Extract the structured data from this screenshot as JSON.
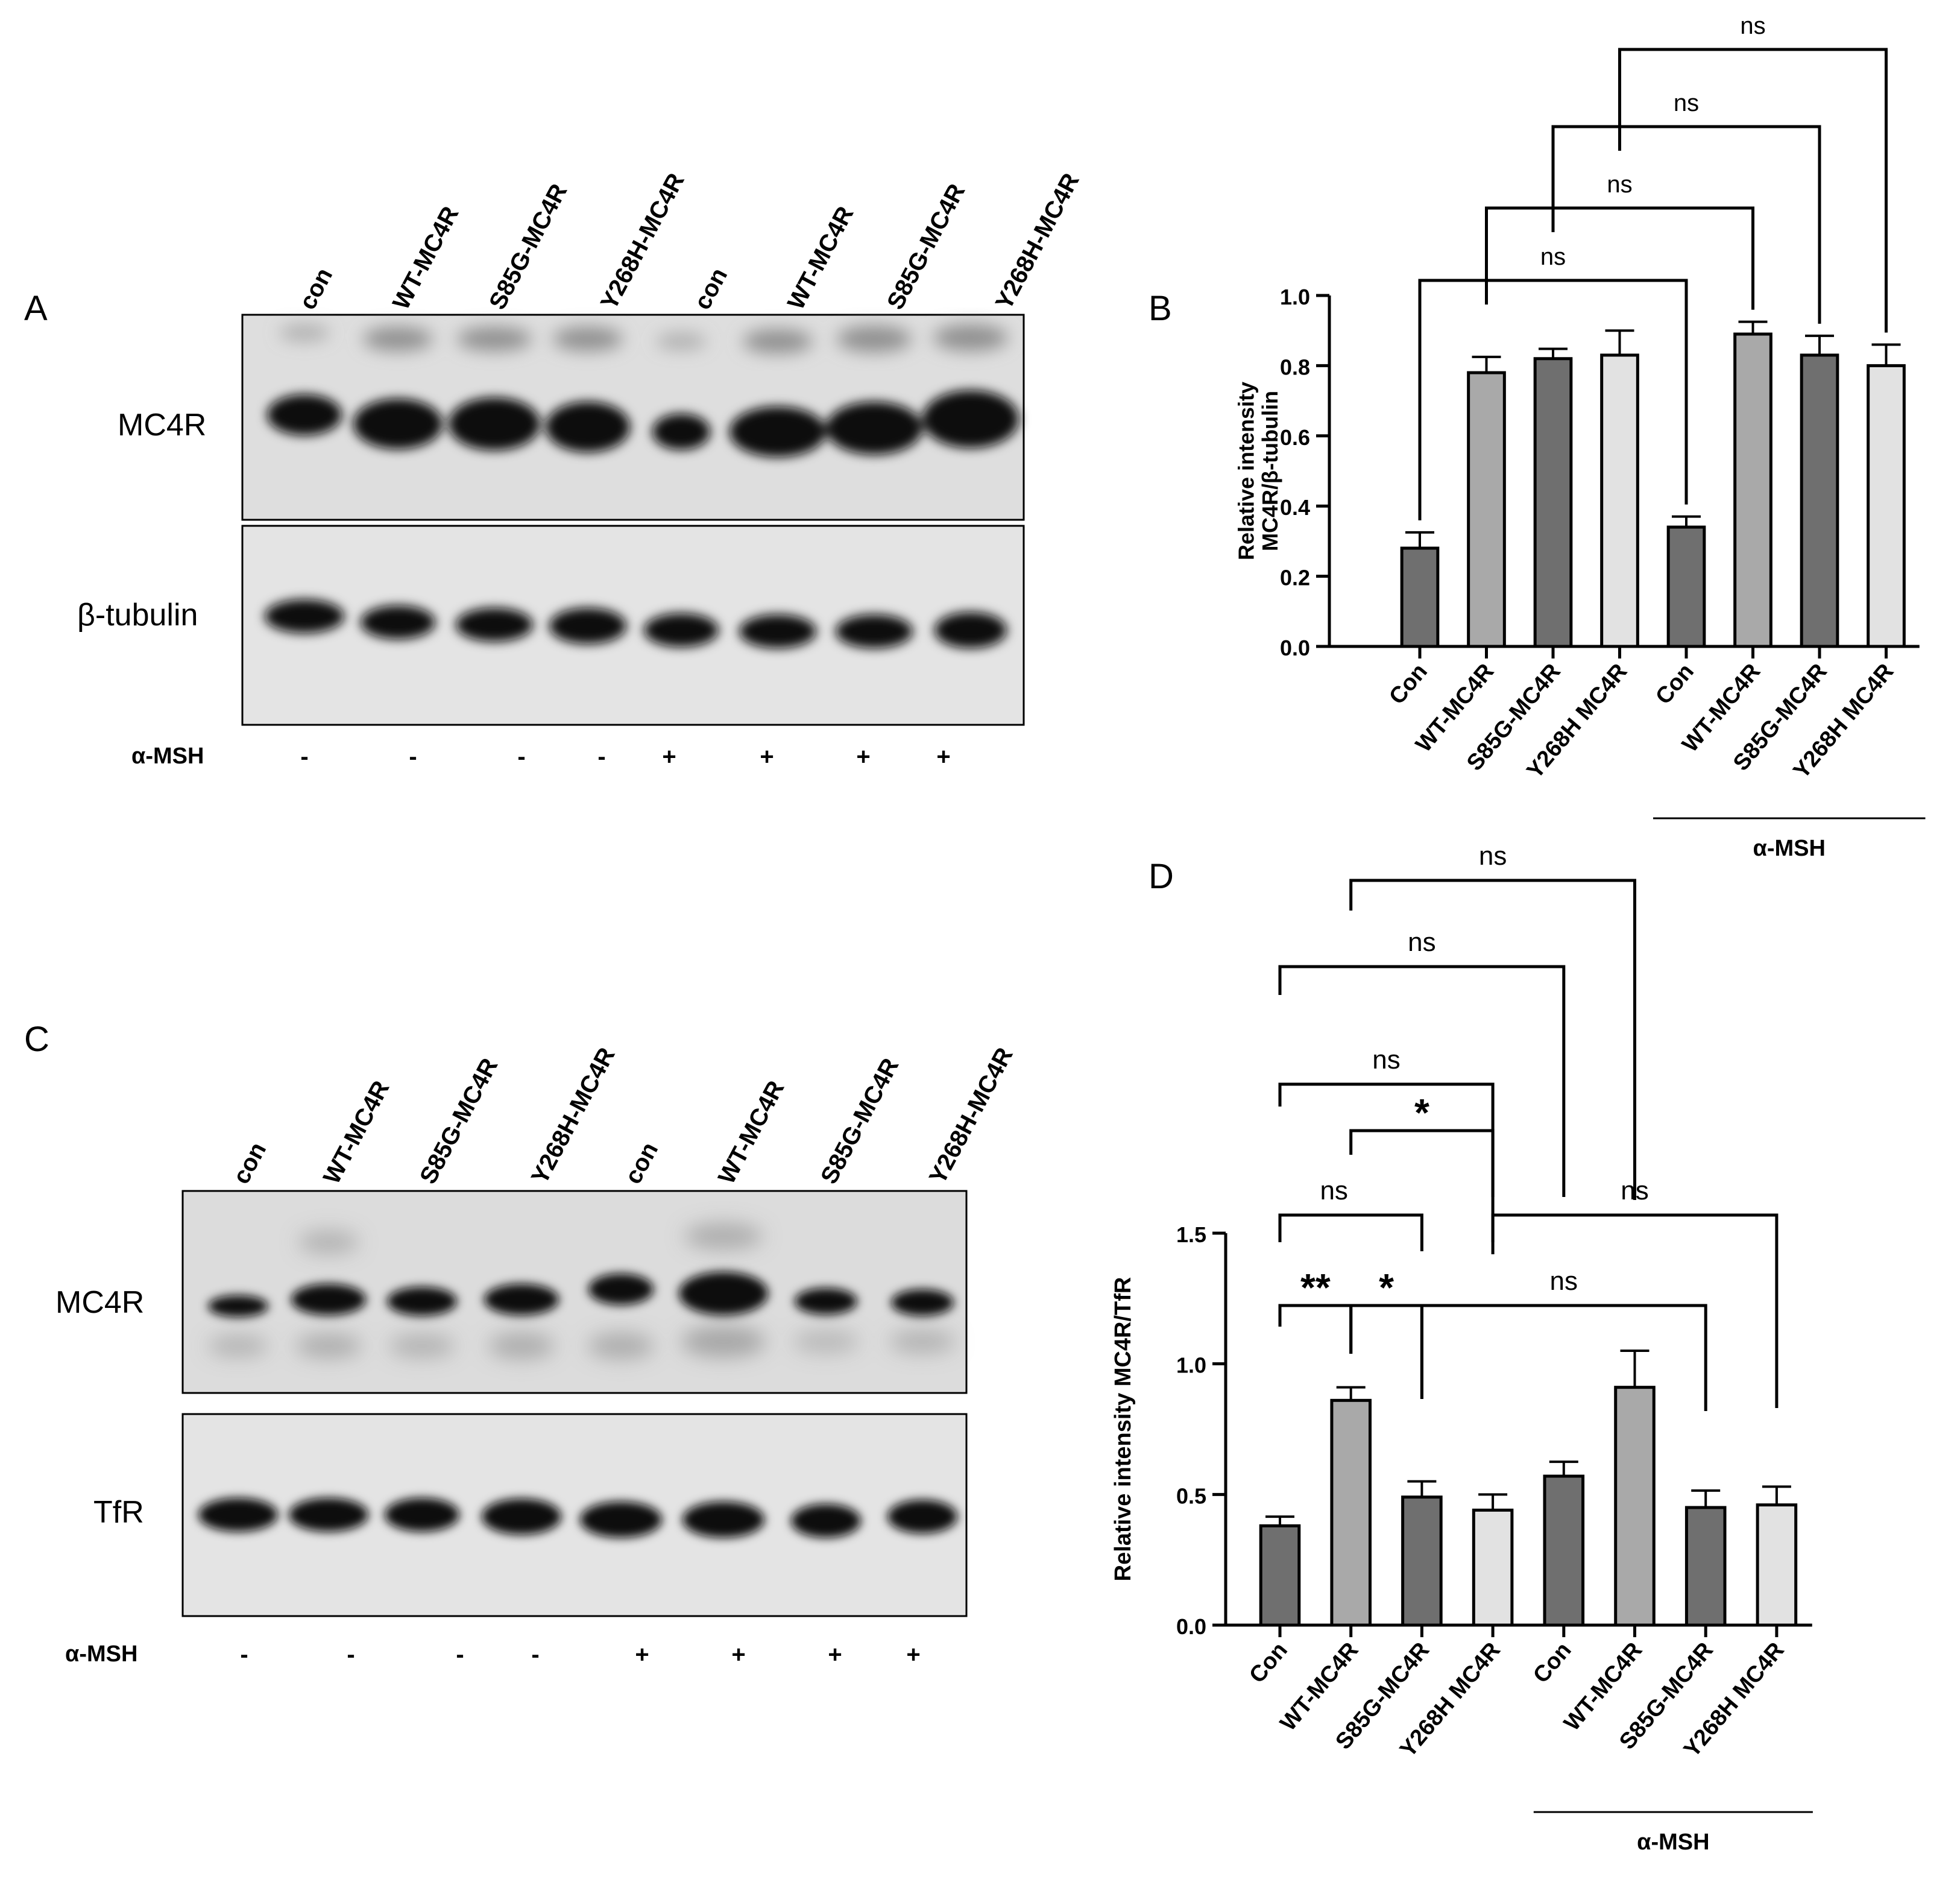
{
  "panels": {
    "a": "A",
    "b": "B",
    "c": "C",
    "d": "D"
  },
  "blot_a": {
    "lanes": [
      "con",
      "WT-MC4R",
      "S85G-MC4R",
      "Y268H-MC4R",
      "con",
      "WT-MC4R",
      "S85G-MC4R",
      "Y268H-MC4R"
    ],
    "rows": [
      "MC4R",
      "β-tubulin"
    ],
    "treatment_label": "α-MSH",
    "treatment": [
      "-",
      "-",
      "-",
      "-",
      "+",
      "+",
      "+",
      "+"
    ]
  },
  "blot_c": {
    "lanes": [
      "con",
      "WT-MC4R",
      "S85G-MC4R",
      "Y268H-MC4R",
      "con",
      "WT-MC4R",
      "S85G-MC4R",
      "Y268H-MC4R"
    ],
    "rows": [
      "MC4R",
      "TfR"
    ],
    "treatment_label": "α-MSH",
    "treatment": [
      "-",
      "-",
      "-",
      "-",
      "+",
      "+",
      "+",
      "+"
    ]
  },
  "colors": {
    "dark": "#6f6f6f",
    "mid": "#a9a9a9",
    "light": "#e2e2e2",
    "band": "#0c0c0c",
    "membrane": "#dcdcdc"
  },
  "chart_data": [
    {
      "type": "bar",
      "panel": "B",
      "ylabel": "Relative intensity MC4R/β-tubulin",
      "ylabel_lines": [
        "Relative intensity",
        "MC4R/β-tubulin"
      ],
      "ylim": [
        0,
        1.0
      ],
      "yticks": [
        "0.0",
        "0.2",
        "0.4",
        "0.6",
        "0.8",
        "1.0"
      ],
      "categories": [
        "Con",
        "WT-MC4R",
        "S85G-MC4R",
        "Y268H MC4R",
        "Con",
        "WT-MC4R",
        "S85G-MC4R",
        "Y268H MC4R"
      ],
      "values": [
        0.28,
        0.78,
        0.82,
        0.83,
        0.34,
        0.89,
        0.83,
        0.8
      ],
      "errors": [
        0.045,
        0.045,
        0.028,
        0.07,
        0.03,
        0.035,
        0.055,
        0.06
      ],
      "shades": [
        "dark",
        "mid",
        "dark",
        "light",
        "dark",
        "mid",
        "dark",
        "light"
      ],
      "group_label": "α-MSH",
      "comparisons": [
        {
          "a": 1,
          "b": 5,
          "label": "ns"
        },
        {
          "a": 2,
          "b": 6,
          "label": "ns"
        },
        {
          "a": 3,
          "b": 7,
          "label": "ns"
        },
        {
          "a": 4,
          "b": 8,
          "label": "ns"
        }
      ]
    },
    {
      "type": "bar",
      "panel": "D",
      "ylabel": "Relative intensity MC4R/TfR",
      "ylim": [
        0,
        1.5
      ],
      "yticks": [
        "0.0",
        "0.5",
        "1.0",
        "1.5"
      ],
      "categories": [
        "Con",
        "WT-MC4R",
        "S85G-MC4R",
        "Y268H MC4R",
        "Con",
        "WT-MC4R",
        "S85G-MC4R",
        "Y268H MC4R"
      ],
      "values": [
        0.38,
        0.86,
        0.49,
        0.44,
        0.57,
        0.91,
        0.45,
        0.46
      ],
      "errors": [
        0.035,
        0.05,
        0.06,
        0.06,
        0.055,
        0.14,
        0.065,
        0.07
      ],
      "shades": [
        "dark",
        "mid",
        "dark",
        "light",
        "dark",
        "mid",
        "dark",
        "light"
      ],
      "group_label": "α-MSH",
      "comparisons": [
        {
          "a": 1,
          "b": 2,
          "label": "**"
        },
        {
          "a": 2,
          "b": 3,
          "label": "*"
        },
        {
          "a": 3,
          "b": 7,
          "label": "ns"
        },
        {
          "a": 1,
          "b": 3,
          "label": "ns"
        },
        {
          "a": 4,
          "b": 8,
          "label": "ns"
        },
        {
          "a": 2,
          "b": 4,
          "label": "*"
        },
        {
          "a": 1,
          "b": 4,
          "label": "ns"
        },
        {
          "a": 1,
          "b": 5,
          "label": "ns"
        },
        {
          "a": 2,
          "b": 6,
          "label": "ns"
        }
      ]
    }
  ]
}
